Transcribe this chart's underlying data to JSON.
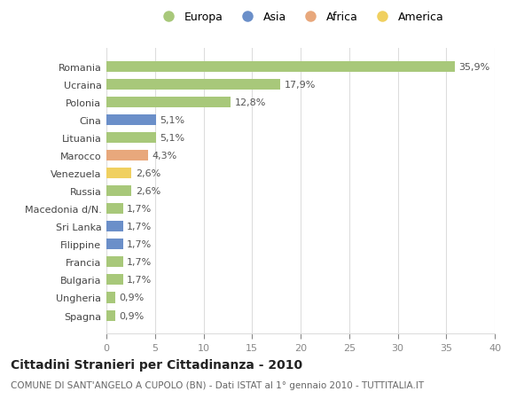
{
  "countries": [
    "Romania",
    "Ucraina",
    "Polonia",
    "Cina",
    "Lituania",
    "Marocco",
    "Venezuela",
    "Russia",
    "Macedonia d/N.",
    "Sri Lanka",
    "Filippine",
    "Francia",
    "Bulgaria",
    "Ungheria",
    "Spagna"
  ],
  "values": [
    35.9,
    17.9,
    12.8,
    5.1,
    5.1,
    4.3,
    2.6,
    2.6,
    1.7,
    1.7,
    1.7,
    1.7,
    1.7,
    0.9,
    0.9
  ],
  "labels": [
    "35,9%",
    "17,9%",
    "12,8%",
    "5,1%",
    "5,1%",
    "4,3%",
    "2,6%",
    "2,6%",
    "1,7%",
    "1,7%",
    "1,7%",
    "1,7%",
    "1,7%",
    "0,9%",
    "0,9%"
  ],
  "continents": [
    "Europa",
    "Europa",
    "Europa",
    "Asia",
    "Europa",
    "Africa",
    "America",
    "Europa",
    "Europa",
    "Asia",
    "Asia",
    "Europa",
    "Europa",
    "Europa",
    "Europa"
  ],
  "colors": {
    "Europa": "#a8c87a",
    "Asia": "#6b8fc9",
    "Africa": "#e8a87c",
    "America": "#f0d060"
  },
  "legend_order": [
    "Europa",
    "Asia",
    "Africa",
    "America"
  ],
  "xlim": [
    0,
    40
  ],
  "xticks": [
    0,
    5,
    10,
    15,
    20,
    25,
    30,
    35,
    40
  ],
  "title": "Cittadini Stranieri per Cittadinanza - 2010",
  "subtitle": "COMUNE DI SANT'ANGELO A CUPOLO (BN) - Dati ISTAT al 1° gennaio 2010 - TUTTITALIA.IT",
  "bg_color": "#ffffff",
  "grid_color": "#dddddd",
  "bar_height": 0.6,
  "label_fontsize": 8,
  "ytick_fontsize": 8,
  "xtick_fontsize": 8,
  "legend_fontsize": 9,
  "title_fontsize": 10,
  "subtitle_fontsize": 7.5
}
